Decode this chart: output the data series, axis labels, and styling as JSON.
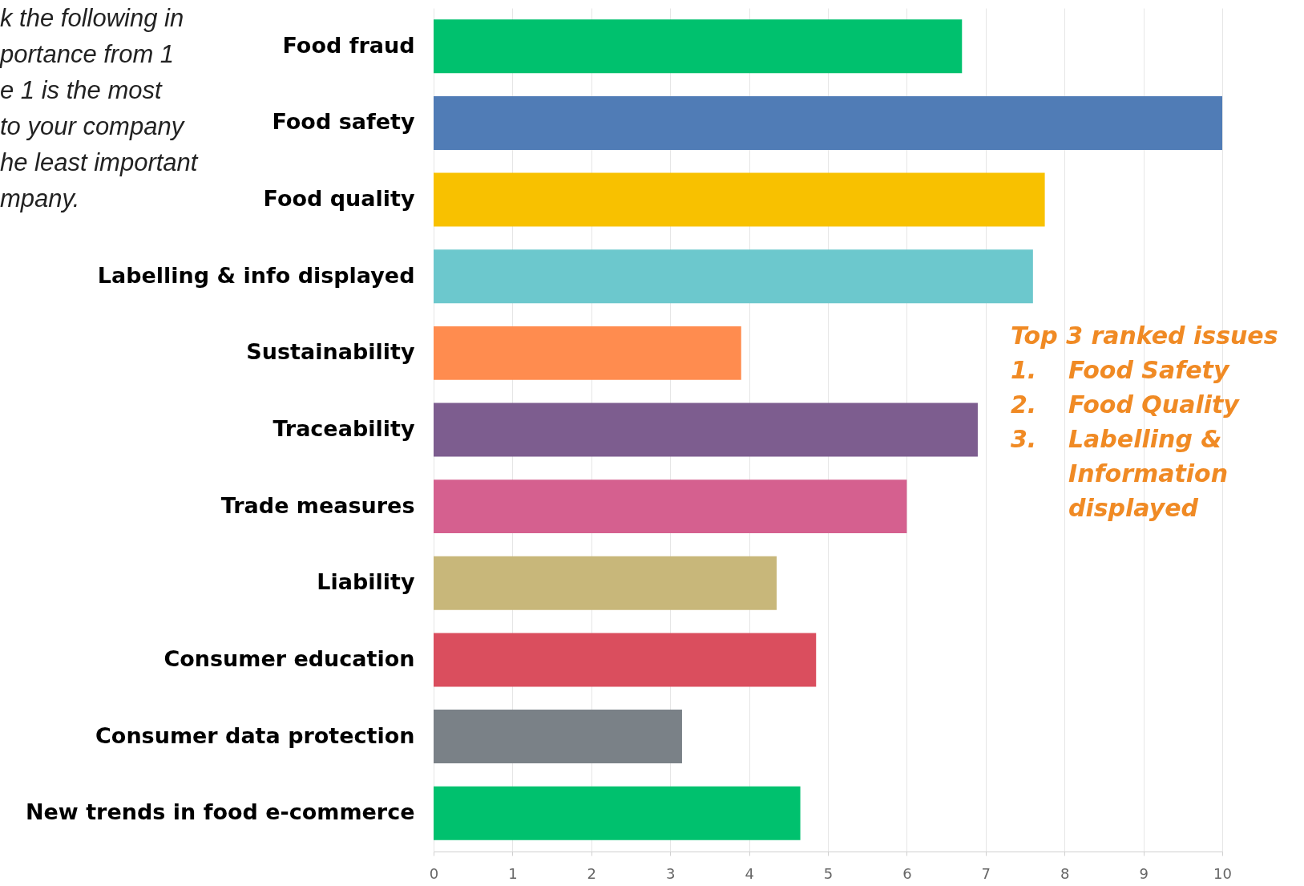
{
  "chart_data": {
    "type": "bar",
    "orientation": "horizontal",
    "categories": [
      "Food fraud",
      "Food safety",
      "Food quality",
      "Labelling & info displayed",
      "Sustainability",
      "Traceability",
      "Trade measures",
      "Liability",
      "Consumer education",
      "Consumer data protection",
      "New trends in food e-commerce"
    ],
    "values": [
      6.7,
      10,
      7.75,
      7.6,
      3.9,
      6.9,
      6,
      4.35,
      4.85,
      3.15,
      4.65
    ],
    "colors": [
      "#00c16e",
      "#507cb6",
      "#f8c100",
      "#6cc8cd",
      "#ff8c4f",
      "#7d5d8f",
      "#d5608f",
      "#c8b77a",
      "#da4e5e",
      "#7a8187",
      "#00c16e"
    ],
    "xlim": [
      0,
      10
    ],
    "xticks": [
      0,
      1,
      2,
      3,
      4,
      5,
      6,
      7,
      8,
      9,
      10
    ],
    "grid": "x",
    "annotations": [
      "Top 3 ranked issues",
      "1. Food Safety",
      "2. Food Quality",
      "3. Labelling & Information displayed",
      "k the following in",
      "portance from 1",
      "e 1 is the most",
      "to your company",
      "he least important",
      "mpany."
    ]
  }
}
